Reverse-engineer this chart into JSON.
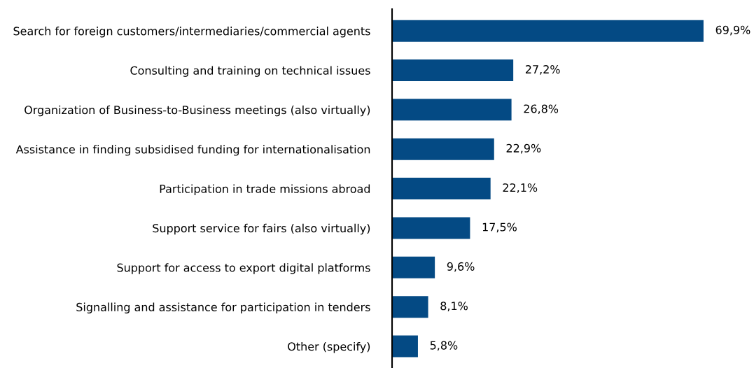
{
  "chart_data": {
    "type": "bar",
    "orientation": "horizontal",
    "categories": [
      "Search for foreign customers/intermediaries/commercial agents",
      "Consulting and training on technical issues",
      "Organization of Business-to-Business meetings (also virtually)",
      "Assistance in finding subsidised funding for internationalisation",
      "Participation in trade missions abroad",
      "Support service for fairs (also virtually)",
      "Support for access to export digital platforms",
      "Signalling and assistance for participation in tenders",
      "Other (specify)"
    ],
    "values": [
      69.9,
      27.2,
      26.8,
      22.9,
      22.1,
      17.5,
      9.6,
      8.1,
      5.8
    ],
    "value_labels": [
      "69,9%",
      "27,2%",
      "26,8%",
      "22,9%",
      "22,1%",
      "17,5%",
      "9,6%",
      "8,1%",
      "5,8%"
    ],
    "color": "#044a84",
    "grid": false,
    "legend": false
  }
}
